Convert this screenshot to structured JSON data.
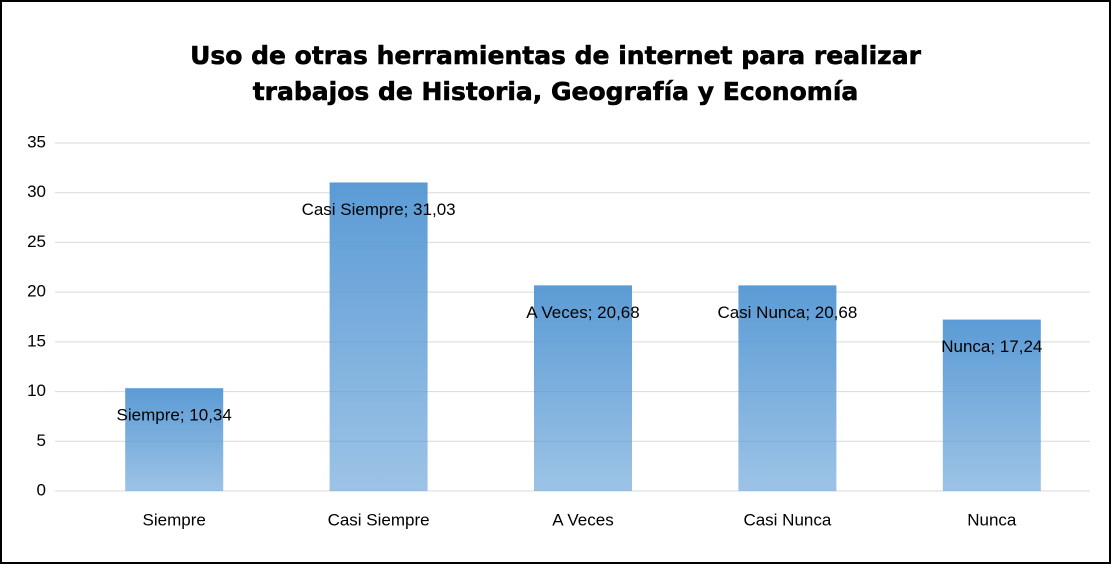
{
  "chart_data": {
    "type": "bar",
    "title": "Uso de otras herramientas de internet para realizar trabajos de Historia, Geografía y Economía",
    "categories": [
      "Siempre",
      "Casi Siempre",
      "A Veces",
      "Casi Nunca",
      "Nunca"
    ],
    "values": [
      10.34,
      31.03,
      20.68,
      20.68,
      17.24
    ],
    "value_labels": [
      "Siempre; 10,34",
      "Casi Siempre; 31,03",
      "A Veces; 20,68",
      "Casi Nunca; 20,68",
      "Nunca; 17,24"
    ],
    "color": "#5b9bd5",
    "ylim": [
      0,
      35
    ],
    "yticks": [
      0,
      5,
      10,
      15,
      20,
      25,
      30,
      35
    ],
    "grid": true
  }
}
